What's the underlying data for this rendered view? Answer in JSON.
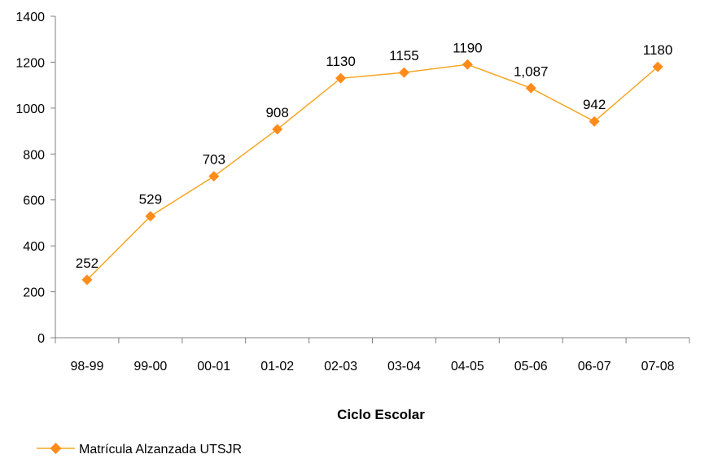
{
  "chart_data": {
    "type": "line",
    "title": "",
    "xlabel": "Ciclo Escolar",
    "ylabel": "",
    "categories": [
      "98-99",
      "99-00",
      "00-01",
      "01-02",
      "02-03",
      "03-04",
      "04-05",
      "05-06",
      "06-07",
      "07-08"
    ],
    "series": [
      {
        "name": "Matrícula Alzanzada UTSJR",
        "values": [
          252,
          529,
          703,
          908,
          1130,
          1155,
          1190,
          1087,
          942,
          1180
        ],
        "data_labels": [
          "252",
          "529",
          "703",
          "908",
          "1130",
          "1155",
          "1190",
          "1,087",
          "942",
          "1180"
        ],
        "color": "#FF8C1A",
        "line_color": "#F5A623",
        "marker": "diamond"
      }
    ],
    "ylim": [
      0,
      1400
    ],
    "yticks": [
      0,
      200,
      400,
      600,
      800,
      1000,
      1200,
      1400
    ],
    "grid": false,
    "legend_position": "bottom-left"
  }
}
